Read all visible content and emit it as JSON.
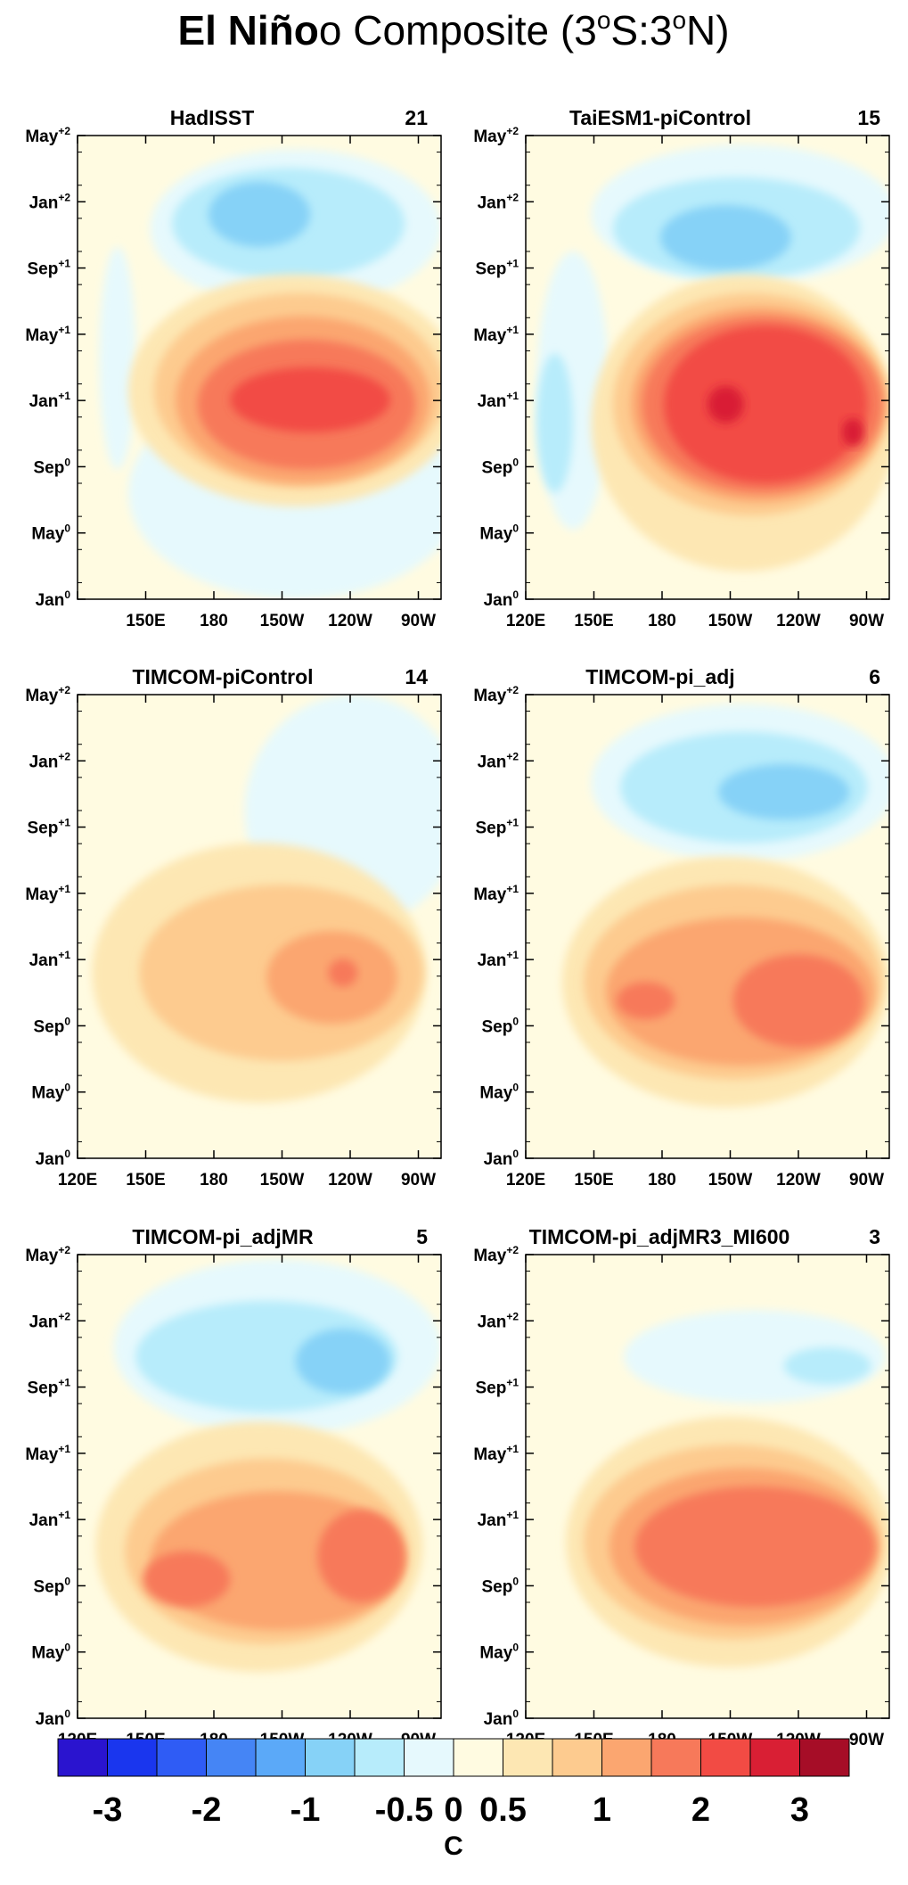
{
  "figure": {
    "title_bold": "El Niño",
    "title_rest": "o Composite (3",
    "title_sup1": "o",
    "title_mid": "S:3",
    "title_sup2": "o",
    "title_end": "N)"
  },
  "chart_data": {
    "type": "heatmap",
    "y_ticks": [
      {
        "base": "Jan",
        "sup": "0"
      },
      {
        "base": "May",
        "sup": "0"
      },
      {
        "base": "Sep",
        "sup": "0"
      },
      {
        "base": "Jan",
        "sup": "+1"
      },
      {
        "base": "May",
        "sup": "+1"
      },
      {
        "base": "Sep",
        "sup": "+1"
      },
      {
        "base": "Jan",
        "sup": "+2"
      },
      {
        "base": "May",
        "sup": "+2"
      }
    ],
    "x_ticks_full": [
      "120E",
      "150E",
      "180",
      "150W",
      "120W",
      "90W"
    ],
    "x_ticks_first": [
      "",
      "150E",
      "180",
      "150W",
      "120W",
      "90W"
    ],
    "colorbar": {
      "colors": [
        "#2a14cf",
        "#1a36ee",
        "#2f5cf5",
        "#4585f5",
        "#5ba9f8",
        "#86d2f7",
        "#b7ecfb",
        "#e6f9fd",
        "#fffbe1",
        "#fde7b3",
        "#fdcb8f",
        "#fba670",
        "#f7795a",
        "#f24b44",
        "#d91f34",
        "#a60d27"
      ],
      "labels": [
        "-3",
        "-2",
        "-1",
        "-0.5",
        "0",
        "0.5",
        "1",
        "2",
        "3"
      ],
      "unit": "C"
    },
    "panels": [
      {
        "title": "HadISST",
        "count": "21"
      },
      {
        "title": "TaiESM1-piControl",
        "count": "15"
      },
      {
        "title": "TIMCOM-piControl",
        "count": "14"
      },
      {
        "title": "TIMCOM-pi_adj",
        "count": "6"
      },
      {
        "title": "TIMCOM-pi_adjMR",
        "count": "5"
      },
      {
        "title": "TIMCOM-pi_adjMR3_MI600",
        "count": "3"
      }
    ]
  }
}
